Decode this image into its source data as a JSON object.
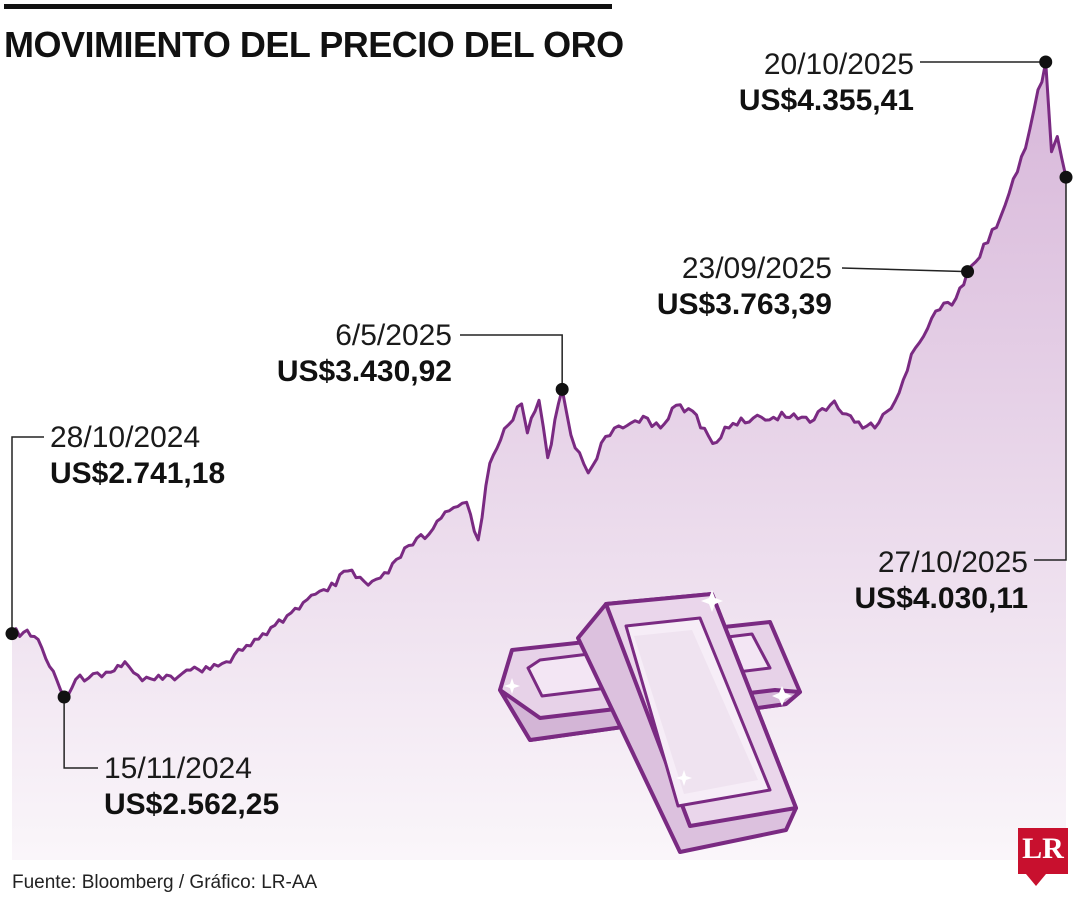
{
  "header": {
    "title": "MOVIMIENTO DEL PRECIO DEL ORO"
  },
  "footer": {
    "source": "Fuente: Bloomberg / Gráfico: LR-AA",
    "logo": "LR"
  },
  "colors": {
    "line": "#7a2a82",
    "area_top": "#d7b6d9",
    "area_bottom": "#faf6fa",
    "logo": "#c8102e"
  },
  "illustration": "gold-bars-icon",
  "chart_data": {
    "type": "area",
    "title": "MOVIMIENTO DEL PRECIO DEL ORO",
    "xlabel": "",
    "ylabel": "",
    "xlim": [
      "2024-10-28",
      "2025-10-27"
    ],
    "ylim": [
      2480,
      4430
    ],
    "grid": false,
    "legend": "none",
    "x": [
      "2024-10-28",
      "2024-11-01",
      "2024-11-06",
      "2024-11-10",
      "2024-11-15",
      "2024-11-19",
      "2024-11-25",
      "2024-12-01",
      "2024-12-06",
      "2024-12-12",
      "2024-12-19",
      "2024-12-26",
      "2025-01-03",
      "2025-01-10",
      "2025-01-17",
      "2025-01-24",
      "2025-01-31",
      "2025-02-07",
      "2025-02-14",
      "2025-02-21",
      "2025-02-28",
      "2025-03-07",
      "2025-03-14",
      "2025-03-21",
      "2025-03-28",
      "2025-04-03",
      "2025-04-07",
      "2025-04-11",
      "2025-04-16",
      "2025-04-22",
      "2025-04-24",
      "2025-04-28",
      "2025-05-01",
      "2025-05-06",
      "2025-05-09",
      "2025-05-15",
      "2025-05-21",
      "2025-05-27",
      "2025-06-03",
      "2025-06-09",
      "2025-06-13",
      "2025-06-20",
      "2025-06-27",
      "2025-07-04",
      "2025-07-11",
      "2025-07-18",
      "2025-07-25",
      "2025-08-01",
      "2025-08-08",
      "2025-08-15",
      "2025-08-22",
      "2025-08-29",
      "2025-09-05",
      "2025-09-12",
      "2025-09-19",
      "2025-09-23",
      "2025-09-30",
      "2025-10-06",
      "2025-10-13",
      "2025-10-16",
      "2025-10-20",
      "2025-10-22",
      "2025-10-24",
      "2025-10-27"
    ],
    "series": [
      {
        "values": [
          2741.18,
          2745,
          2725,
          2648,
          2562.25,
          2612,
          2628,
          2632,
          2662,
          2608,
          2612,
          2630,
          2648,
          2662,
          2708,
          2738,
          2792,
          2838,
          2862,
          2918,
          2878,
          2912,
          2990,
          3022,
          3088,
          3112,
          3006,
          3222,
          3320,
          3390,
          3308,
          3400,
          3238,
          3430.92,
          3302,
          3195,
          3298,
          3322,
          3355,
          3322,
          3378,
          3370,
          3278,
          3335,
          3350,
          3352,
          3362,
          3345,
          3398,
          3338,
          3322,
          3398,
          3548,
          3652,
          3688,
          3763.39,
          3845,
          3952,
          4112,
          4222,
          4355.41,
          4102,
          4145,
          4030.11
        ]
      }
    ],
    "annotations": [
      {
        "date": "28/10/2024",
        "value": "US$2.741,18",
        "x": "2024-10-28",
        "y": 2741.18
      },
      {
        "date": "15/11/2024",
        "value": "US$2.562,25",
        "x": "2024-11-15",
        "y": 2562.25
      },
      {
        "date": "6/5/2025",
        "value": "US$3.430,92",
        "x": "2025-05-06",
        "y": 3430.92
      },
      {
        "date": "23/09/2025",
        "value": "US$3.763,39",
        "x": "2025-09-23",
        "y": 3763.39
      },
      {
        "date": "20/10/2025",
        "value": "US$4.355,41",
        "x": "2025-10-20",
        "y": 4355.41
      },
      {
        "date": "27/10/2025",
        "value": "US$4.030,11",
        "x": "2025-10-27",
        "y": 4030.11
      }
    ]
  }
}
